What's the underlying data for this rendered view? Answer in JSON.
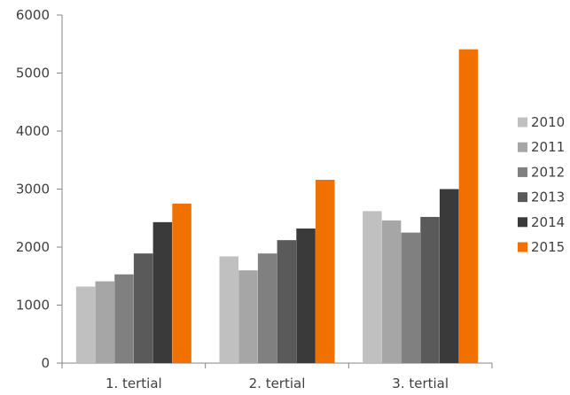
{
  "chart_data": {
    "type": "bar",
    "title": "",
    "xlabel": "",
    "ylabel": "",
    "ylim": [
      0,
      6000
    ],
    "yticks": [
      0,
      1000,
      2000,
      3000,
      4000,
      5000,
      6000
    ],
    "grid": false,
    "legend_position": "right",
    "categories": [
      "1. tertial",
      "2. tertial",
      "3. tertial"
    ],
    "series": [
      {
        "name": "2010",
        "color": "#c0c0c0",
        "values": [
          1320,
          1840,
          2620
        ]
      },
      {
        "name": "2011",
        "color": "#a6a6a6",
        "values": [
          1410,
          1600,
          2460
        ]
      },
      {
        "name": "2012",
        "color": "#808080",
        "values": [
          1530,
          1890,
          2250
        ]
      },
      {
        "name": "2013",
        "color": "#5a5a5a",
        "values": [
          1890,
          2120,
          2520
        ]
      },
      {
        "name": "2014",
        "color": "#3a3a3a",
        "values": [
          2430,
          2320,
          3000
        ]
      },
      {
        "name": "2015",
        "color": "#f07000",
        "values": [
          2750,
          3160,
          5410
        ]
      }
    ]
  }
}
